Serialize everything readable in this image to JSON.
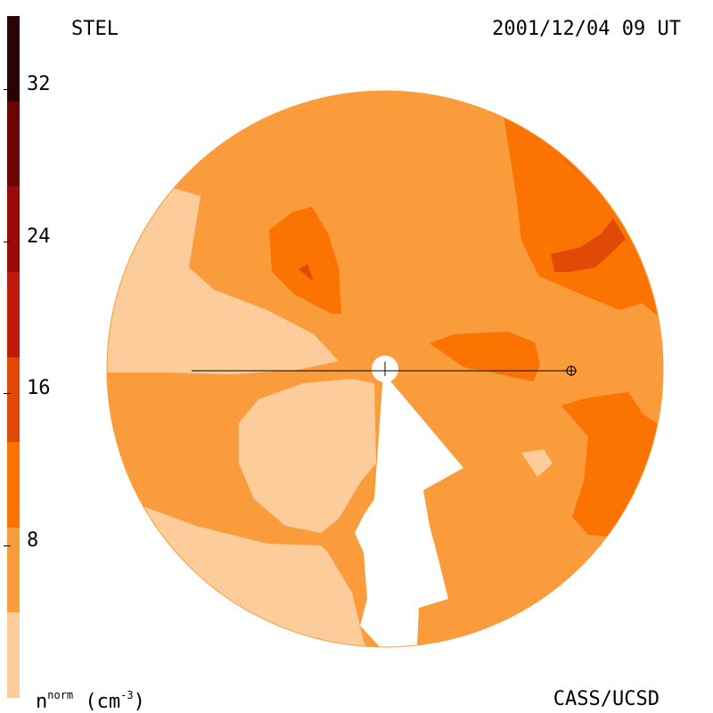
{
  "header": {
    "title_left": "STEL",
    "title_right": "2001/12/04 09 UT"
  },
  "footer": {
    "unit_base": "n",
    "unit_sup": "norm",
    "unit_rest": " (cm",
    "unit_exp": "-3",
    "unit_close": ")",
    "credit": "CASS/UCSD"
  },
  "colorbar": {
    "ticks": [
      "32",
      "24",
      "16",
      "8"
    ],
    "colors": [
      "#fccd9a",
      "#fa9c3b",
      "#fb7300",
      "#e04a06",
      "#c01a0a",
      "#9a0a06",
      "#6a0606",
      "#2a0302"
    ]
  },
  "map": {
    "background_color": "#fa9c3b",
    "level_colors": {
      "low": "#fccd9a",
      "mid": "#fa9c3b",
      "high": "#fb7300",
      "peak": "#e04a06"
    }
  }
}
